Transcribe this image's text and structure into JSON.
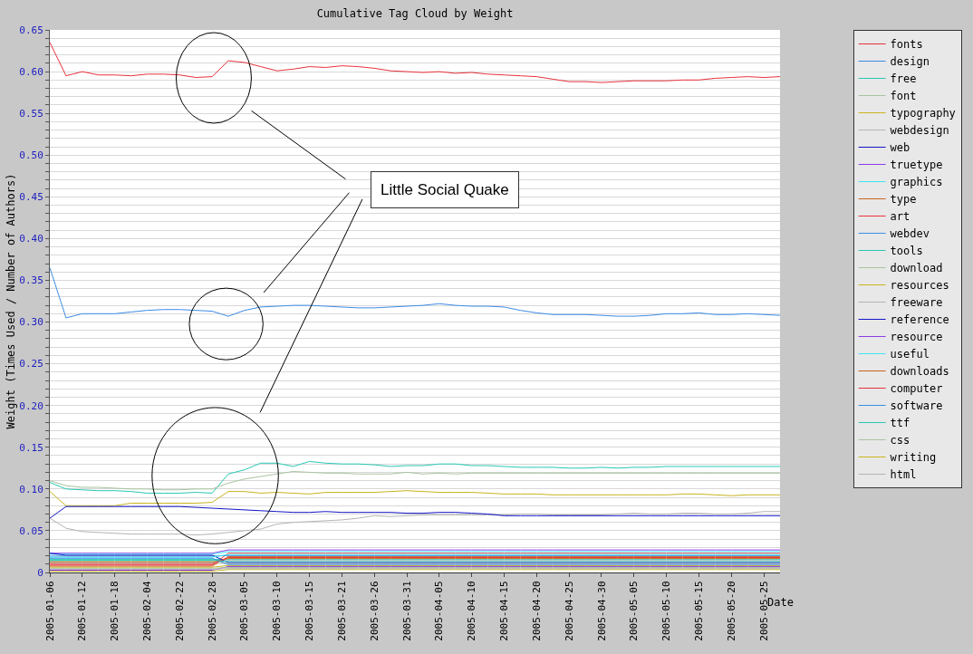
{
  "chart_data": {
    "type": "line",
    "title": "Cumulative Tag Cloud by Weight",
    "xlabel": "Date",
    "ylabel": "Weight (Times Used / Number of Authors)",
    "categories": [
      "2005-01-06",
      null,
      "2005-01-12",
      null,
      "2005-01-18",
      null,
      "2005-02-04",
      null,
      "2005-02-22",
      null,
      "2005-02-28",
      null,
      "2005-03-05",
      null,
      "2005-03-10",
      null,
      "2005-03-15",
      null,
      "2005-03-21",
      null,
      "2005-03-26",
      null,
      "2005-03-31",
      null,
      "2005-04-05",
      null,
      "2005-04-10",
      null,
      "2005-04-15",
      null,
      "2005-04-20",
      null,
      "2005-04-25",
      null,
      "2005-04-30",
      null,
      "2005-05-05",
      null,
      "2005-05-10",
      null,
      "2005-05-15",
      null,
      "2005-05-20",
      null,
      "2005-05-25",
      null
    ],
    "ylim": [
      0,
      0.65
    ],
    "yticks": [
      0,
      {
        "value": 0.01,
        "label": null
      },
      {
        "value": 0.02,
        "label": null
      },
      {
        "value": 0.03,
        "label": null
      },
      {
        "value": 0.04,
        "label": null
      },
      {
        "value": 0.05,
        "label": "0.05"
      },
      {
        "value": 0.06,
        "label": null
      },
      {
        "value": 0.07,
        "label": null
      },
      {
        "value": 0.08,
        "label": null
      },
      {
        "value": 0.09,
        "label": null
      },
      {
        "value": 0.1,
        "label": "0.10"
      },
      {
        "value": 0.11,
        "label": null
      },
      {
        "value": 0.12,
        "label": null
      },
      {
        "value": 0.13,
        "label": null
      },
      {
        "value": 0.14,
        "label": null
      },
      {
        "value": 0.15,
        "label": "0.15"
      },
      {
        "value": 0.16,
        "label": null
      },
      {
        "value": 0.17,
        "label": null
      },
      {
        "value": 0.18,
        "label": null
      },
      {
        "value": 0.19,
        "label": null
      },
      {
        "value": 0.2,
        "label": "0.20"
      },
      {
        "value": 0.21,
        "label": null
      },
      {
        "value": 0.22,
        "label": null
      },
      {
        "value": 0.23,
        "label": null
      },
      {
        "value": 0.24,
        "label": null
      },
      {
        "value": 0.25,
        "label": "0.25"
      },
      {
        "value": 0.26,
        "label": null
      },
      {
        "value": 0.27,
        "label": null
      },
      {
        "value": 0.28,
        "label": null
      },
      {
        "value": 0.29,
        "label": null
      },
      {
        "value": 0.3,
        "label": "0.30"
      },
      {
        "value": 0.31,
        "label": null
      },
      {
        "value": 0.32,
        "label": null
      },
      {
        "value": 0.33,
        "label": null
      },
      {
        "value": 0.34,
        "label": null
      },
      {
        "value": 0.35,
        "label": "0.35"
      },
      {
        "value": 0.36,
        "label": null
      },
      {
        "value": 0.37,
        "label": null
      },
      {
        "value": 0.38,
        "label": null
      },
      {
        "value": 0.39,
        "label": null
      },
      {
        "value": 0.4,
        "label": "0.40"
      },
      {
        "value": 0.41,
        "label": null
      },
      {
        "value": 0.42,
        "label": null
      },
      {
        "value": 0.43,
        "label": null
      },
      {
        "value": 0.44,
        "label": null
      },
      {
        "value": 0.45,
        "label": "0.45"
      },
      {
        "value": 0.46,
        "label": null
      },
      {
        "value": 0.47,
        "label": null
      },
      {
        "value": 0.48,
        "label": null
      },
      {
        "value": 0.49,
        "label": null
      },
      {
        "value": 0.5,
        "label": "0.50"
      },
      {
        "value": 0.51,
        "label": null
      },
      {
        "value": 0.52,
        "label": null
      },
      {
        "value": 0.53,
        "label": null
      },
      {
        "value": 0.54,
        "label": null
      },
      {
        "value": 0.55,
        "label": "0.55"
      },
      {
        "value": 0.56,
        "label": null
      },
      {
        "value": 0.57,
        "label": null
      },
      {
        "value": 0.58,
        "label": null
      },
      {
        "value": 0.59,
        "label": null
      },
      {
        "value": 0.6,
        "label": "0.60"
      },
      {
        "value": 0.61,
        "label": null
      },
      {
        "value": 0.62,
        "label": null
      },
      {
        "value": 0.63,
        "label": null
      },
      {
        "value": 0.64,
        "label": null
      },
      {
        "value": 0.65,
        "label": "0.65"
      }
    ],
    "grid": "y",
    "legend": "top right",
    "marker": "none",
    "line_style": "solid",
    "annotations": [
      "Little Social Quake"
    ],
    "series": [
      {
        "name": "fonts",
        "color": "#e8323c",
        "values": [
          0.635,
          0.595,
          0.6,
          0.596,
          0.596,
          0.595,
          0.597,
          0.597,
          0.596,
          0.593,
          0.594,
          0.613,
          0.611,
          0.606,
          0.601,
          0.603,
          0.606,
          0.605,
          0.607,
          0.606,
          0.604,
          0.601,
          0.6,
          0.599,
          0.6,
          0.598,
          0.599,
          0.597,
          0.596,
          0.595,
          0.594,
          0.591,
          0.588,
          0.588,
          0.587,
          0.588,
          0.589,
          0.589,
          0.589,
          0.59,
          0.59,
          0.592,
          0.593,
          0.594,
          0.593,
          0.594
        ]
      },
      {
        "name": "design",
        "color": "#3c8ce6",
        "values": [
          0.365,
          0.305,
          0.31,
          0.31,
          0.31,
          0.312,
          0.314,
          0.315,
          0.315,
          0.314,
          0.313,
          0.307,
          0.314,
          0.318,
          0.319,
          0.32,
          0.32,
          0.319,
          0.318,
          0.317,
          0.317,
          0.318,
          0.319,
          0.32,
          0.322,
          0.32,
          0.319,
          0.319,
          0.318,
          0.314,
          0.311,
          0.309,
          0.309,
          0.309,
          0.308,
          0.307,
          0.307,
          0.308,
          0.31,
          0.31,
          0.311,
          0.309,
          0.309,
          0.31,
          0.309,
          0.308
        ]
      },
      {
        "name": "free",
        "color": "#28c8b4",
        "values": [
          0.108,
          0.1,
          0.099,
          0.098,
          0.098,
          0.097,
          0.095,
          0.095,
          0.095,
          0.096,
          0.095,
          0.118,
          0.123,
          0.131,
          0.131,
          0.127,
          0.133,
          0.131,
          0.13,
          0.13,
          0.129,
          0.127,
          0.128,
          0.128,
          0.13,
          0.13,
          0.128,
          0.128,
          0.127,
          0.126,
          0.126,
          0.126,
          0.125,
          0.125,
          0.126,
          0.125,
          0.126,
          0.126,
          0.127,
          0.127,
          0.127,
          0.127,
          0.127,
          0.127,
          0.127,
          0.127
        ]
      },
      {
        "name": "font",
        "color": "#a8c4a0",
        "values": [
          0.11,
          0.104,
          0.102,
          0.102,
          0.101,
          0.1,
          0.1,
          0.099,
          0.099,
          0.1,
          0.1,
          0.107,
          0.112,
          0.115,
          0.118,
          0.121,
          0.12,
          0.119,
          0.119,
          0.118,
          0.118,
          0.118,
          0.12,
          0.118,
          0.119,
          0.118,
          0.119,
          0.119,
          0.119,
          0.119,
          0.119,
          0.119,
          0.119,
          0.119,
          0.119,
          0.119,
          0.119,
          0.119,
          0.119,
          0.119,
          0.119,
          0.119,
          0.119,
          0.119,
          0.119,
          0.119
        ]
      },
      {
        "name": "typography",
        "color": "#c8b41e",
        "values": [
          0.097,
          0.08,
          0.08,
          0.08,
          0.08,
          0.083,
          0.083,
          0.083,
          0.083,
          0.083,
          0.084,
          0.097,
          0.097,
          0.095,
          0.096,
          0.095,
          0.094,
          0.096,
          0.096,
          0.096,
          0.096,
          0.097,
          0.098,
          0.097,
          0.096,
          0.096,
          0.096,
          0.095,
          0.094,
          0.094,
          0.094,
          0.093,
          0.093,
          0.093,
          0.093,
          0.093,
          0.093,
          0.093,
          0.093,
          0.094,
          0.094,
          0.093,
          0.092,
          0.093,
          0.093,
          0.093
        ]
      },
      {
        "name": "webdesign",
        "color": "#b4b4b4",
        "values": [
          0.065,
          0.053,
          0.049,
          0.048,
          0.047,
          0.046,
          0.046,
          0.046,
          0.046,
          0.045,
          0.046,
          0.048,
          0.05,
          0.052,
          0.058,
          0.06,
          0.061,
          0.062,
          0.063,
          0.065,
          0.068,
          0.067,
          0.068,
          0.069,
          0.069,
          0.069,
          0.069,
          0.069,
          0.069,
          0.07,
          0.07,
          0.069,
          0.069,
          0.069,
          0.069,
          0.07,
          0.071,
          0.07,
          0.07,
          0.071,
          0.071,
          0.07,
          0.07,
          0.071,
          0.073,
          0.073
        ]
      },
      {
        "name": "web",
        "color": "#1414c8",
        "values": [
          0.065,
          0.079,
          0.079,
          0.079,
          0.079,
          0.079,
          0.079,
          0.079,
          0.079,
          0.078,
          0.077,
          0.076,
          0.075,
          0.074,
          0.073,
          0.072,
          0.072,
          0.073,
          0.072,
          0.072,
          0.072,
          0.072,
          0.071,
          0.071,
          0.072,
          0.072,
          0.071,
          0.07,
          0.068,
          0.068,
          0.068,
          0.068,
          0.068,
          0.068,
          0.068,
          0.068,
          0.068,
          0.068,
          0.068,
          0.068,
          0.068,
          0.068,
          0.068,
          0.068,
          0.068,
          0.068
        ]
      },
      {
        "name": "truetype",
        "color": "#8c3ce6",
        "values": [
          0.0231,
          0.0231,
          0.0231,
          0.0231,
          0.0231,
          0.0231,
          0.0231,
          0.0231,
          0.0231,
          0.0231,
          0.0231,
          0.027,
          0.027,
          0.027,
          0.027,
          0.027,
          0.027,
          0.027,
          0.027,
          0.027,
          0.027,
          0.027,
          0.027,
          0.027,
          0.027,
          0.027,
          0.027,
          0.027,
          0.027,
          0.027,
          0.027,
          0.027,
          0.027,
          0.027,
          0.027,
          0.027,
          0.027,
          0.027,
          0.027,
          0.027,
          0.027,
          0.027,
          0.027,
          0.027,
          0.027,
          0.027
        ]
      },
      {
        "name": "graphics",
        "color": "#3ce6f0",
        "values": [
          0.0219,
          0.0219,
          0.0219,
          0.0219,
          0.0219,
          0.0219,
          0.0219,
          0.0219,
          0.0219,
          0.0219,
          0.0219,
          0.025,
          0.025,
          0.025,
          0.025,
          0.025,
          0.025,
          0.025,
          0.025,
          0.025,
          0.025,
          0.025,
          0.025,
          0.025,
          0.025,
          0.025,
          0.025,
          0.025,
          0.025,
          0.025,
          0.025,
          0.025,
          0.025,
          0.025,
          0.025,
          0.025,
          0.025,
          0.025,
          0.025,
          0.025,
          0.025,
          0.025,
          0.025,
          0.025,
          0.025,
          0.025
        ]
      },
      {
        "name": "type",
        "color": "#c8641e",
        "values": [
          0.0075,
          0.0075,
          0.0075,
          0.0075,
          0.0075,
          0.0075,
          0.0075,
          0.0075,
          0.0075,
          0.0075,
          0.0075,
          0.0191,
          0.0191,
          0.0191,
          0.0191,
          0.0191,
          0.0191,
          0.0191,
          0.0191,
          0.0191,
          0.0191,
          0.0191,
          0.0191,
          0.0191,
          0.0191,
          0.0191,
          0.0191,
          0.0191,
          0.0191,
          0.0191,
          0.0191,
          0.0191,
          0.0191,
          0.0191,
          0.0191,
          0.0191,
          0.0191,
          0.0191,
          0.0191,
          0.0191,
          0.0191,
          0.0191,
          0.0191,
          0.0191,
          0.0191,
          0.0191
        ]
      },
      {
        "name": "art",
        "color": "#e8323c",
        "values": [
          0.0087,
          0.0087,
          0.0087,
          0.0087,
          0.0087,
          0.0087,
          0.0087,
          0.0087,
          0.0087,
          0.0087,
          0.0087,
          0.023,
          0.023,
          0.023,
          0.023,
          0.023,
          0.023,
          0.023,
          0.023,
          0.023,
          0.023,
          0.023,
          0.023,
          0.023,
          0.023,
          0.023,
          0.023,
          0.023,
          0.023,
          0.023,
          0.023,
          0.023,
          0.023,
          0.023,
          0.023,
          0.023,
          0.023,
          0.023,
          0.023,
          0.023,
          0.023,
          0.023,
          0.023,
          0.023,
          0.023,
          0.023
        ]
      },
      {
        "name": "webdev",
        "color": "#3c8ce6",
        "values": [
          0.0195,
          0.0195,
          0.0195,
          0.0195,
          0.0195,
          0.0195,
          0.0195,
          0.0195,
          0.0195,
          0.0195,
          0.0195,
          0.0203,
          0.0203,
          0.0203,
          0.0203,
          0.0203,
          0.0203,
          0.0203,
          0.0203,
          0.0203,
          0.0203,
          0.0203,
          0.0203,
          0.0203,
          0.0203,
          0.0203,
          0.0203,
          0.0203,
          0.0203,
          0.0203,
          0.0203,
          0.0203,
          0.0203,
          0.0203,
          0.0203,
          0.0203,
          0.0203,
          0.0203,
          0.0203,
          0.0203,
          0.0203,
          0.0203,
          0.0203,
          0.0203,
          0.0203,
          0.0203
        ]
      },
      {
        "name": "tools",
        "color": "#28c8b4",
        "values": [
          0.0159,
          0.0159,
          0.0159,
          0.0159,
          0.0159,
          0.0159,
          0.0159,
          0.0159,
          0.0159,
          0.0159,
          0.0159,
          0.0155,
          0.0155,
          0.0155,
          0.0155,
          0.0155,
          0.0155,
          0.0155,
          0.0155,
          0.0155,
          0.0155,
          0.0155,
          0.0155,
          0.0155,
          0.0155,
          0.0155,
          0.0155,
          0.0155,
          0.0155,
          0.0155,
          0.0155,
          0.0155,
          0.0155,
          0.0155,
          0.0155,
          0.0155,
          0.0155,
          0.0155,
          0.0155,
          0.0155,
          0.0155,
          0.0155,
          0.0155,
          0.0155,
          0.0155,
          0.0155
        ]
      },
      {
        "name": "download",
        "color": "#a8c4a0",
        "values": [
          0.0135,
          0.0135,
          0.0135,
          0.0135,
          0.0135,
          0.0135,
          0.0135,
          0.0135,
          0.0135,
          0.0135,
          0.0135,
          0.0107,
          0.0107,
          0.0107,
          0.0107,
          0.0107,
          0.0107,
          0.0107,
          0.0107,
          0.0107,
          0.0107,
          0.0107,
          0.0107,
          0.0107,
          0.0107,
          0.0107,
          0.0107,
          0.0107,
          0.0107,
          0.0107,
          0.0107,
          0.0107,
          0.0107,
          0.0107,
          0.0107,
          0.0107,
          0.0107,
          0.0107,
          0.0107,
          0.0107,
          0.0107,
          0.0107,
          0.0107,
          0.0107,
          0.0107,
          0.0107
        ]
      },
      {
        "name": "resources",
        "color": "#c8b41e",
        "values": [
          0.0063,
          0.0063,
          0.0063,
          0.0063,
          0.0063,
          0.0063,
          0.0063,
          0.0063,
          0.0063,
          0.0063,
          0.0063,
          0.0083,
          0.0083,
          0.0083,
          0.0083,
          0.0083,
          0.0083,
          0.0083,
          0.0083,
          0.0083,
          0.0083,
          0.0083,
          0.0083,
          0.0083,
          0.0083,
          0.0083,
          0.0083,
          0.0083,
          0.0083,
          0.0083,
          0.0083,
          0.0083,
          0.0083,
          0.0083,
          0.0083,
          0.0083,
          0.0083,
          0.0083,
          0.0083,
          0.0083,
          0.0083,
          0.0083,
          0.0083,
          0.0083,
          0.0083,
          0.0083
        ]
      },
      {
        "name": "freeware",
        "color": "#b4b4b4",
        "values": [
          0.0111,
          0.0111,
          0.0111,
          0.0111,
          0.0111,
          0.0111,
          0.0111,
          0.0111,
          0.0111,
          0.0111,
          0.0111,
          0.0143,
          0.0143,
          0.0143,
          0.0143,
          0.0143,
          0.0143,
          0.0143,
          0.0143,
          0.0143,
          0.0143,
          0.0143,
          0.0143,
          0.0143,
          0.0143,
          0.0143,
          0.0143,
          0.0143,
          0.0143,
          0.0143,
          0.0143,
          0.0143,
          0.0143,
          0.0143,
          0.0143,
          0.0143,
          0.0143,
          0.0143,
          0.0143,
          0.0143,
          0.0143,
          0.0143,
          0.0143,
          0.0143,
          0.0143,
          0.0143
        ]
      },
      {
        "name": "reference",
        "color": "#1414c8",
        "values": [
          0.023,
          0.0207,
          0.0207,
          0.0207,
          0.0207,
          0.0207,
          0.0207,
          0.0207,
          0.0207,
          0.0207,
          0.0207,
          0.0119,
          0.0119,
          0.0119,
          0.0119,
          0.0119,
          0.0119,
          0.0119,
          0.0119,
          0.0119,
          0.0119,
          0.0119,
          0.0119,
          0.0119,
          0.0119,
          0.0119,
          0.0119,
          0.0119,
          0.0119,
          0.0119,
          0.0119,
          0.0119,
          0.0119,
          0.0119,
          0.0119,
          0.0119,
          0.0119,
          0.0119,
          0.0119,
          0.0119,
          0.0119,
          0.0119,
          0.0119,
          0.0119,
          0.0119,
          0.0119
        ]
      },
      {
        "name": "resource",
        "color": "#8c3ce6",
        "values": [
          0.0027,
          0.0027,
          0.0027,
          0.0027,
          0.0027,
          0.0027,
          0.0027,
          0.0027,
          0.0027,
          0.0027,
          0.0027,
          0.0071,
          0.0071,
          0.0071,
          0.0071,
          0.0071,
          0.0071,
          0.0071,
          0.0071,
          0.0071,
          0.0071,
          0.0071,
          0.0071,
          0.0071,
          0.0071,
          0.0071,
          0.0071,
          0.0071,
          0.0071,
          0.0071,
          0.0071,
          0.0071,
          0.0071,
          0.0071,
          0.0071,
          0.0071,
          0.0071,
          0.0071,
          0.0071,
          0.0071,
          0.0071,
          0.0071,
          0.0071,
          0.0071,
          0.0071,
          0.0071
        ]
      },
      {
        "name": "useful",
        "color": "#3ce6f0",
        "values": [
          0.0183,
          0.0183,
          0.0183,
          0.0183,
          0.0183,
          0.0183,
          0.0183,
          0.0183,
          0.0183,
          0.0183,
          0.0183,
          0.0215,
          0.0215,
          0.0215,
          0.0215,
          0.0215,
          0.0215,
          0.0215,
          0.0215,
          0.0215,
          0.0215,
          0.0215,
          0.0215,
          0.0215,
          0.0215,
          0.0215,
          0.0215,
          0.0215,
          0.0215,
          0.0215,
          0.0215,
          0.0215,
          0.0215,
          0.0215,
          0.0215,
          0.0215,
          0.0215,
          0.0215,
          0.0215,
          0.0215,
          0.0215,
          0.0215,
          0.0215,
          0.0215,
          0.0215,
          0.0215
        ]
      },
      {
        "name": "downloads",
        "color": "#c8641e",
        "values": [
          0.0123,
          0.0123,
          0.0123,
          0.0123,
          0.0123,
          0.0123,
          0.0123,
          0.0123,
          0.0123,
          0.0123,
          0.0123,
          0.0167,
          0.0167,
          0.0167,
          0.0167,
          0.0167,
          0.0167,
          0.0167,
          0.0167,
          0.0167,
          0.0167,
          0.0167,
          0.0167,
          0.0167,
          0.0167,
          0.0167,
          0.0167,
          0.0167,
          0.0167,
          0.0167,
          0.0167,
          0.0167,
          0.0167,
          0.0167,
          0.0167,
          0.0167,
          0.0167,
          0.0167,
          0.0167,
          0.0167,
          0.0167,
          0.0167,
          0.0167,
          0.0167,
          0.0167,
          0.0167
        ]
      },
      {
        "name": "computer",
        "color": "#e8323c",
        "values": [
          0.0099,
          0.0099,
          0.0099,
          0.0099,
          0.0099,
          0.0099,
          0.0099,
          0.0099,
          0.0099,
          0.0099,
          0.0099,
          0.0179,
          0.0179,
          0.0179,
          0.0179,
          0.0179,
          0.0179,
          0.0179,
          0.0179,
          0.0179,
          0.0179,
          0.0179,
          0.0179,
          0.0179,
          0.0179,
          0.0179,
          0.0179,
          0.0179,
          0.0179,
          0.0179,
          0.0179,
          0.0179,
          0.0179,
          0.0179,
          0.0179,
          0.0179,
          0.0179,
          0.0179,
          0.0179,
          0.0179,
          0.0179,
          0.0179,
          0.0179,
          0.0179,
          0.0179,
          0.0179
        ]
      },
      {
        "name": "software",
        "color": "#3c8ce6",
        "values": [
          0.0171,
          0.0171,
          0.0171,
          0.0171,
          0.0171,
          0.0171,
          0.0171,
          0.0171,
          0.0171,
          0.0171,
          0.0171,
          0.0095,
          0.0095,
          0.0095,
          0.0095,
          0.0095,
          0.0095,
          0.0095,
          0.0095,
          0.0095,
          0.0095,
          0.0095,
          0.0095,
          0.0095,
          0.0095,
          0.0095,
          0.0095,
          0.0095,
          0.0095,
          0.0095,
          0.0095,
          0.0095,
          0.0095,
          0.0095,
          0.0095,
          0.0095,
          0.0095,
          0.0095,
          0.0095,
          0.0095,
          0.0095,
          0.0095,
          0.0095,
          0.0095,
          0.0095,
          0.0095
        ]
      },
      {
        "name": "ttf",
        "color": "#28c8b4",
        "values": [
          0.0147,
          0.0147,
          0.0147,
          0.0147,
          0.0147,
          0.0147,
          0.0147,
          0.0147,
          0.0147,
          0.0147,
          0.0147,
          0.0131,
          0.0131,
          0.0131,
          0.0131,
          0.0131,
          0.0131,
          0.0131,
          0.0131,
          0.0131,
          0.0131,
          0.0131,
          0.0131,
          0.0131,
          0.0131,
          0.0131,
          0.0131,
          0.0131,
          0.0131,
          0.0131,
          0.0131,
          0.0131,
          0.0131,
          0.0131,
          0.0131,
          0.0131,
          0.0131,
          0.0131,
          0.0131,
          0.0131,
          0.0131,
          0.0131,
          0.0131,
          0.0131,
          0.0131,
          0.0131
        ]
      },
      {
        "name": "css",
        "color": "#a8c4a0",
        "values": [
          0.0051,
          0.0051,
          0.0051,
          0.0051,
          0.0051,
          0.0051,
          0.0051,
          0.0051,
          0.0051,
          0.0051,
          0.0051,
          0.0059,
          0.0059,
          0.0059,
          0.0059,
          0.0059,
          0.0059,
          0.0059,
          0.0059,
          0.0059,
          0.0059,
          0.0059,
          0.0059,
          0.0059,
          0.0059,
          0.0059,
          0.0059,
          0.0059,
          0.0059,
          0.0059,
          0.0059,
          0.0059,
          0.0059,
          0.0059,
          0.0059,
          0.0059,
          0.0059,
          0.0059,
          0.0059,
          0.0059,
          0.0059,
          0.0059,
          0.0059,
          0.0059,
          0.0059,
          0.0059
        ]
      },
      {
        "name": "writing",
        "color": "#c8b41e",
        "values": [
          0.0015,
          0.0015,
          0.0015,
          0.0015,
          0.0015,
          0.0015,
          0.0015,
          0.0015,
          0.0015,
          0.0015,
          0.0015,
          0.0035,
          0.0035,
          0.0035,
          0.0035,
          0.0035,
          0.0035,
          0.0035,
          0.0035,
          0.0035,
          0.0035,
          0.0035,
          0.0035,
          0.0035,
          0.0035,
          0.0035,
          0.0035,
          0.0035,
          0.0035,
          0.0035,
          0.0035,
          0.0035,
          0.0035,
          0.0035,
          0.0035,
          0.0035,
          0.0035,
          0.0035,
          0.0035,
          0.0035,
          0.0035,
          0.0035,
          0.0035,
          0.0035,
          0.0035,
          0.0035
        ]
      },
      {
        "name": "html",
        "color": "#b4b4b4",
        "values": [
          0.0039,
          0.0039,
          0.0039,
          0.0039,
          0.0039,
          0.0039,
          0.0039,
          0.0039,
          0.0039,
          0.0039,
          0.0039,
          0.0047,
          0.0047,
          0.0047,
          0.0047,
          0.0047,
          0.0047,
          0.0047,
          0.0047,
          0.0047,
          0.0047,
          0.0047,
          0.0047,
          0.0047,
          0.0047,
          0.0047,
          0.0047,
          0.0047,
          0.0047,
          0.0047,
          0.0047,
          0.0047,
          0.0047,
          0.0047,
          0.0047,
          0.0047,
          0.0047,
          0.0047,
          0.0047,
          0.0047,
          0.0047,
          0.0047,
          0.0047,
          0.0047,
          0.0047,
          0.0047
        ]
      }
    ]
  }
}
